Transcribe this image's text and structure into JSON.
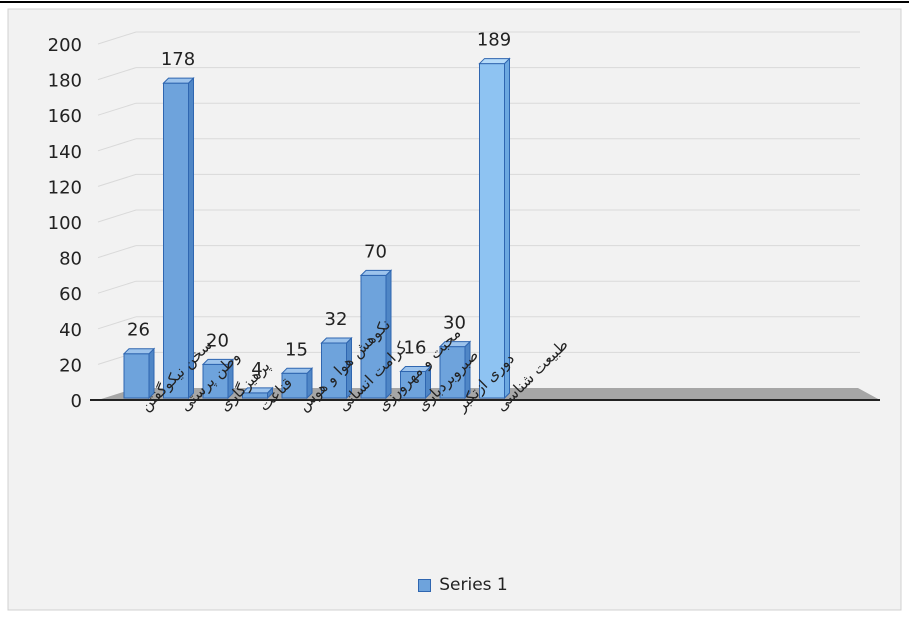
{
  "chart_data": {
    "type": "bar",
    "categories": [
      "سخن نیکوگفتن",
      "وطن پرستی",
      "پرهیزگاری",
      "قناعت",
      "نکوهش هوا و هوس",
      "کرامت انسانی",
      "محبت و مهرورزی",
      "صبروبردباری",
      "دوری ازتکبر",
      "طبیعت شناسی"
    ],
    "series": [
      {
        "name": "Series 1",
        "values": [
          26,
          178,
          20,
          4,
          15,
          32,
          70,
          16,
          30,
          189
        ]
      }
    ],
    "ylim": [
      0,
      200
    ],
    "yticks": [
      "0",
      "20",
      "40",
      "60",
      "80",
      "100",
      "120",
      "140",
      "160",
      "180",
      "200"
    ],
    "data_labels": [
      "26",
      "178",
      "20",
      "4",
      "15",
      "32",
      "70",
      "16",
      "30",
      "189"
    ],
    "highlight_index": 9,
    "grid": true,
    "legend": "bottom",
    "colors": {
      "bar": "#6ea3dc",
      "bar_highlight": "#8ec3f2",
      "bar_border": "#2f66b0",
      "grid": "#d9d9d9",
      "floor": "#a6a6a6",
      "background": "#f2f2f2"
    }
  }
}
